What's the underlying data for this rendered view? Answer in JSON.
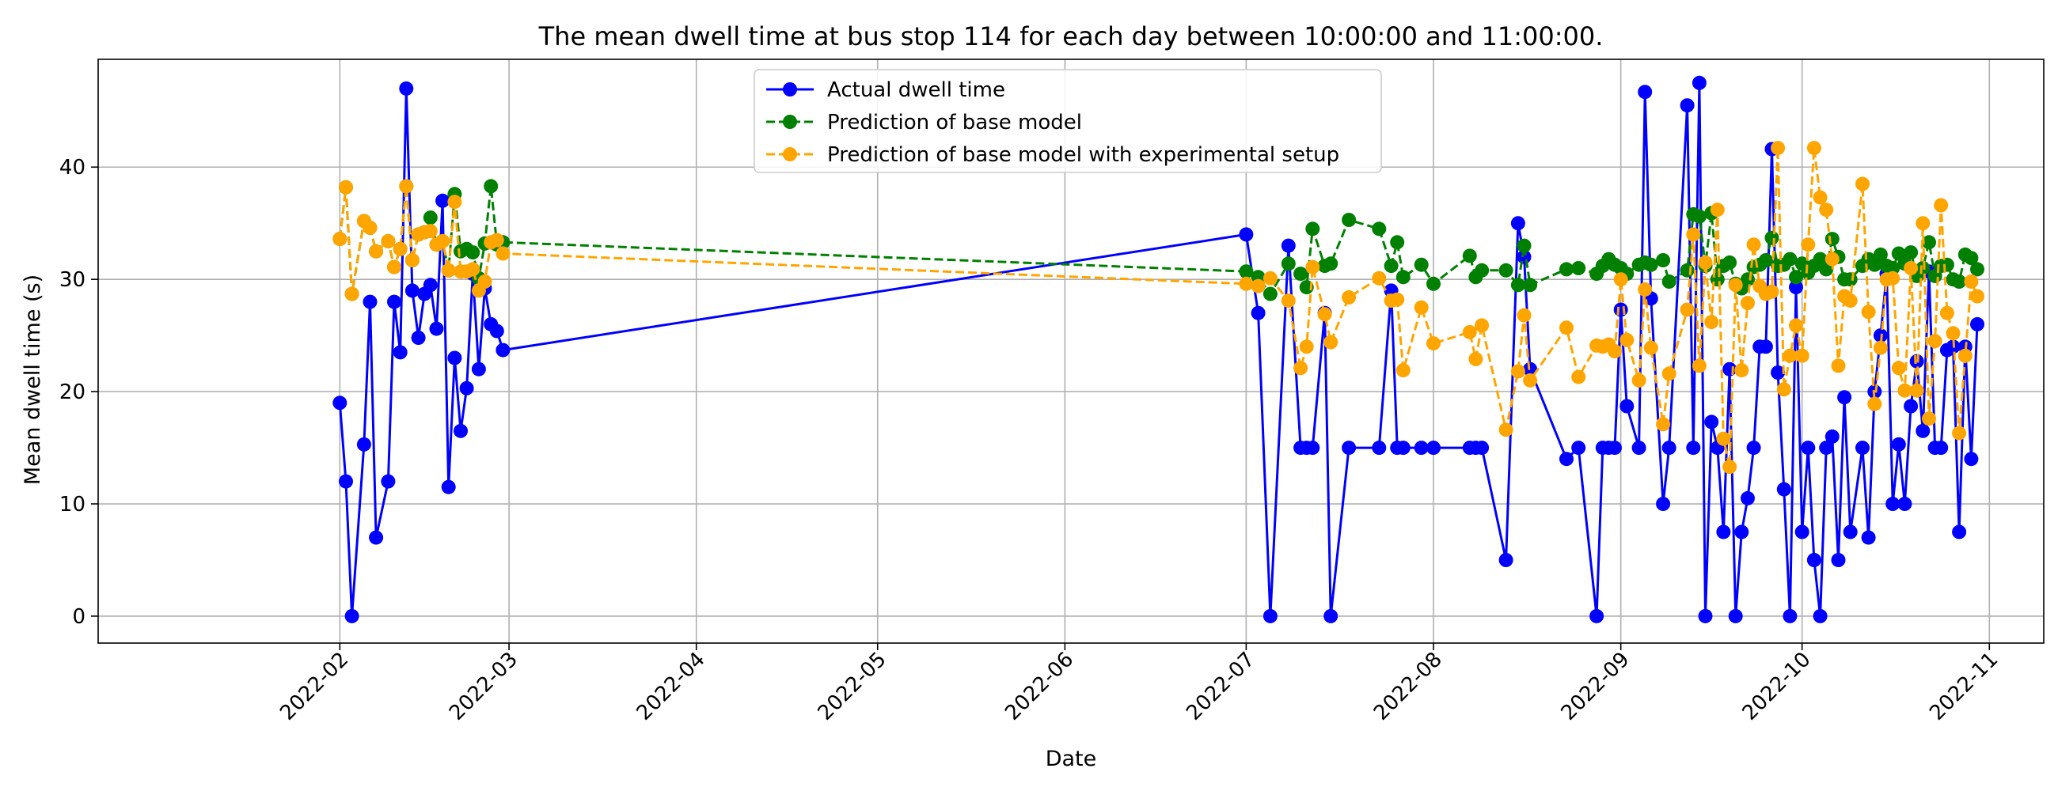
{
  "chart_data": {
    "type": "line",
    "title": "The mean dwell time at bus stop 114 for each day between 10:00:00 and 11:00:00.",
    "xlabel": "Date",
    "ylabel": "Mean dwell time (s)",
    "x_range": [
      "2021-12-23",
      "2022-11-10"
    ],
    "ylim": [
      -2.4,
      49.6
    ],
    "x_ticks": [
      "2022-02-01",
      "2022-03-01",
      "2022-04-01",
      "2022-05-01",
      "2022-06-01",
      "2022-07-01",
      "2022-08-01",
      "2022-09-01",
      "2022-10-01",
      "2022-11-01"
    ],
    "x_tick_labels": [
      "2022-02",
      "2022-03",
      "2022-04",
      "2022-05",
      "2022-06",
      "2022-07",
      "2022-08",
      "2022-09",
      "2022-10",
      "2022-11"
    ],
    "y_ticks": [
      0,
      10,
      20,
      30,
      40
    ],
    "y_tick_labels": [
      "0",
      "10",
      "20",
      "30",
      "40"
    ],
    "grid": true,
    "legend_position": "top-center",
    "series": [
      {
        "name": "Actual dwell time",
        "color": "#0000ff",
        "linestyle": "solid",
        "x": [
          "2022-02-01",
          "2022-02-02",
          "2022-02-03",
          "2022-02-05",
          "2022-02-06",
          "2022-02-07",
          "2022-02-09",
          "2022-02-10",
          "2022-02-11",
          "2022-02-12",
          "2022-02-13",
          "2022-02-14",
          "2022-02-15",
          "2022-02-16",
          "2022-02-17",
          "2022-02-18",
          "2022-02-19",
          "2022-02-20",
          "2022-02-21",
          "2022-02-22",
          "2022-02-23",
          "2022-02-24",
          "2022-02-25",
          "2022-02-26",
          "2022-02-27",
          "2022-02-28",
          "2022-07-01",
          "2022-07-03",
          "2022-07-05",
          "2022-07-08",
          "2022-07-10",
          "2022-07-11",
          "2022-07-12",
          "2022-07-14",
          "2022-07-15",
          "2022-07-18",
          "2022-07-23",
          "2022-07-25",
          "2022-07-26",
          "2022-07-27",
          "2022-07-30",
          "2022-08-01",
          "2022-08-07",
          "2022-08-08",
          "2022-08-09",
          "2022-08-13",
          "2022-08-15",
          "2022-08-16",
          "2022-08-17",
          "2022-08-23",
          "2022-08-25",
          "2022-08-28",
          "2022-08-29",
          "2022-08-30",
          "2022-08-31",
          "2022-09-01",
          "2022-09-02",
          "2022-09-04",
          "2022-09-05",
          "2022-09-06",
          "2022-09-08",
          "2022-09-09",
          "2022-09-12",
          "2022-09-13",
          "2022-09-14",
          "2022-09-15",
          "2022-09-16",
          "2022-09-17",
          "2022-09-18",
          "2022-09-19",
          "2022-09-20",
          "2022-09-21",
          "2022-09-22",
          "2022-09-23",
          "2022-09-24",
          "2022-09-25",
          "2022-09-26",
          "2022-09-27",
          "2022-09-28",
          "2022-09-29",
          "2022-09-30",
          "2022-10-01",
          "2022-10-02",
          "2022-10-03",
          "2022-10-04",
          "2022-10-05",
          "2022-10-06",
          "2022-10-07",
          "2022-10-08",
          "2022-10-09",
          "2022-10-11",
          "2022-10-12",
          "2022-10-13",
          "2022-10-14",
          "2022-10-15",
          "2022-10-16",
          "2022-10-17",
          "2022-10-18",
          "2022-10-19",
          "2022-10-20",
          "2022-10-21",
          "2022-10-22",
          "2022-10-23",
          "2022-10-24",
          "2022-10-25",
          "2022-10-26",
          "2022-10-27",
          "2022-10-28",
          "2022-10-29",
          "2022-10-30"
        ],
        "y": [
          19,
          12,
          0,
          15.3,
          28,
          7,
          12,
          28,
          23.5,
          47,
          29,
          24.8,
          28.7,
          29.5,
          25.6,
          37,
          11.5,
          23,
          16.5,
          20.3,
          30.5,
          22,
          29.2,
          26,
          25.4,
          23.7,
          34,
          27,
          0,
          33,
          15,
          15,
          15,
          27,
          0,
          15,
          15,
          29,
          15,
          15,
          15,
          15,
          15,
          15,
          15,
          5,
          35,
          32,
          22,
          14,
          15,
          0,
          15,
          15,
          15,
          27.3,
          18.7,
          15,
          46.7,
          28.3,
          10,
          15,
          45.5,
          15,
          47.5,
          0,
          17.3,
          15,
          7.5,
          22,
          0,
          7.5,
          10.5,
          15,
          24,
          24,
          41.6,
          21.7,
          11.3,
          0,
          29.3,
          7.5,
          15,
          5,
          0,
          15,
          16,
          5,
          19.5,
          7.5,
          15,
          7,
          20,
          25,
          30.5,
          10,
          15.3,
          10,
          18.7,
          22.7,
          16.5,
          30.7,
          15,
          15,
          23.7,
          24,
          7.5,
          24,
          14,
          26
        ]
      },
      {
        "name": "Prediction of base model",
        "color": "#008000",
        "linestyle": "dashed",
        "x": [
          "2022-02-01",
          "2022-02-02",
          "2022-02-03",
          "2022-02-05",
          "2022-02-06",
          "2022-02-07",
          "2022-02-09",
          "2022-02-10",
          "2022-02-11",
          "2022-02-12",
          "2022-02-13",
          "2022-02-14",
          "2022-02-15",
          "2022-02-16",
          "2022-02-17",
          "2022-02-18",
          "2022-02-19",
          "2022-02-20",
          "2022-02-21",
          "2022-02-22",
          "2022-02-23",
          "2022-02-24",
          "2022-02-25",
          "2022-02-26",
          "2022-02-27",
          "2022-02-28",
          "2022-07-01",
          "2022-07-03",
          "2022-07-05",
          "2022-07-08",
          "2022-07-10",
          "2022-07-11",
          "2022-07-12",
          "2022-07-14",
          "2022-07-15",
          "2022-07-18",
          "2022-07-23",
          "2022-07-25",
          "2022-07-26",
          "2022-07-27",
          "2022-07-30",
          "2022-08-01",
          "2022-08-07",
          "2022-08-08",
          "2022-08-09",
          "2022-08-13",
          "2022-08-15",
          "2022-08-16",
          "2022-08-17",
          "2022-08-23",
          "2022-08-25",
          "2022-08-28",
          "2022-08-29",
          "2022-08-30",
          "2022-08-31",
          "2022-09-01",
          "2022-09-02",
          "2022-09-04",
          "2022-09-05",
          "2022-09-06",
          "2022-09-08",
          "2022-09-09",
          "2022-09-12",
          "2022-09-13",
          "2022-09-14",
          "2022-09-15",
          "2022-09-16",
          "2022-09-17",
          "2022-09-18",
          "2022-09-19",
          "2022-09-20",
          "2022-09-21",
          "2022-09-22",
          "2022-09-23",
          "2022-09-24",
          "2022-09-25",
          "2022-09-26",
          "2022-09-27",
          "2022-09-28",
          "2022-09-29",
          "2022-09-30",
          "2022-10-01",
          "2022-10-02",
          "2022-10-03",
          "2022-10-04",
          "2022-10-05",
          "2022-10-06",
          "2022-10-07",
          "2022-10-08",
          "2022-10-09",
          "2022-10-11",
          "2022-10-12",
          "2022-10-13",
          "2022-10-14",
          "2022-10-15",
          "2022-10-16",
          "2022-10-17",
          "2022-10-18",
          "2022-10-19",
          "2022-10-20",
          "2022-10-21",
          "2022-10-22",
          "2022-10-23",
          "2022-10-24",
          "2022-10-25",
          "2022-10-26",
          "2022-10-27",
          "2022-10-28",
          "2022-10-29",
          "2022-10-30"
        ],
        "y": [
          33.6,
          38.2,
          28.7,
          35.2,
          34.6,
          32.5,
          33.4,
          31.1,
          32.7,
          38.3,
          31.7,
          34,
          34.2,
          35.5,
          33.1,
          33.4,
          30.8,
          37.6,
          32.5,
          32.7,
          32.4,
          30.1,
          33.2,
          38.3,
          33.1,
          33.3,
          30.7,
          30.2,
          28.7,
          31.4,
          30.5,
          29.3,
          34.5,
          31.2,
          31.4,
          35.3,
          34.5,
          31.2,
          33.3,
          30.2,
          31.3,
          29.6,
          32.1,
          30.2,
          30.8,
          30.8,
          29.5,
          33,
          29.5,
          30.9,
          31,
          30.5,
          31.2,
          31.8,
          31.3,
          31,
          30.5,
          31.3,
          31.5,
          31.3,
          31.7,
          29.8,
          30.8,
          35.8,
          35.6,
          31.2,
          35.9,
          30,
          31.2,
          31.5,
          29.6,
          29.2,
          30,
          31.1,
          31.3,
          31.7,
          33.7,
          31.2,
          31.3,
          31.8,
          30.2,
          31.4,
          30.6,
          31.2,
          31.8,
          30.9,
          33.6,
          32,
          30,
          30,
          31.2,
          31.8,
          31.3,
          32.2,
          31.2,
          31,
          32.3,
          31.4,
          32.4,
          30.3,
          31,
          33.3,
          30.3,
          31.2,
          31.3,
          30,
          29.8,
          32.2,
          31.9,
          30.9
        ]
      },
      {
        "name": "Prediction of base model with experimental setup",
        "color": "#ffa500",
        "linestyle": "dashed",
        "x": [
          "2022-02-01",
          "2022-02-02",
          "2022-02-03",
          "2022-02-05",
          "2022-02-06",
          "2022-02-07",
          "2022-02-09",
          "2022-02-10",
          "2022-02-11",
          "2022-02-12",
          "2022-02-13",
          "2022-02-14",
          "2022-02-15",
          "2022-02-16",
          "2022-02-17",
          "2022-02-18",
          "2022-02-19",
          "2022-02-20",
          "2022-02-21",
          "2022-02-22",
          "2022-02-23",
          "2022-02-24",
          "2022-02-25",
          "2022-02-26",
          "2022-02-27",
          "2022-02-28",
          "2022-07-01",
          "2022-07-03",
          "2022-07-05",
          "2022-07-08",
          "2022-07-10",
          "2022-07-11",
          "2022-07-12",
          "2022-07-14",
          "2022-07-15",
          "2022-07-18",
          "2022-07-23",
          "2022-07-25",
          "2022-07-26",
          "2022-07-27",
          "2022-07-30",
          "2022-08-01",
          "2022-08-07",
          "2022-08-08",
          "2022-08-09",
          "2022-08-13",
          "2022-08-15",
          "2022-08-16",
          "2022-08-17",
          "2022-08-23",
          "2022-08-25",
          "2022-08-28",
          "2022-08-29",
          "2022-08-30",
          "2022-08-31",
          "2022-09-01",
          "2022-09-02",
          "2022-09-04",
          "2022-09-05",
          "2022-09-06",
          "2022-09-08",
          "2022-09-09",
          "2022-09-12",
          "2022-09-13",
          "2022-09-14",
          "2022-09-15",
          "2022-09-16",
          "2022-09-17",
          "2022-09-18",
          "2022-09-19",
          "2022-09-20",
          "2022-09-21",
          "2022-09-22",
          "2022-09-23",
          "2022-09-24",
          "2022-09-25",
          "2022-09-26",
          "2022-09-27",
          "2022-09-28",
          "2022-09-29",
          "2022-09-30",
          "2022-10-01",
          "2022-10-02",
          "2022-10-03",
          "2022-10-04",
          "2022-10-05",
          "2022-10-06",
          "2022-10-07",
          "2022-10-08",
          "2022-10-09",
          "2022-10-11",
          "2022-10-12",
          "2022-10-13",
          "2022-10-14",
          "2022-10-15",
          "2022-10-16",
          "2022-10-17",
          "2022-10-18",
          "2022-10-19",
          "2022-10-20",
          "2022-10-21",
          "2022-10-22",
          "2022-10-23",
          "2022-10-24",
          "2022-10-25",
          "2022-10-26",
          "2022-10-27",
          "2022-10-28",
          "2022-10-29",
          "2022-10-30"
        ],
        "y": [
          33.6,
          38.2,
          28.7,
          35.2,
          34.6,
          32.5,
          33.4,
          31.1,
          32.7,
          38.3,
          31.7,
          34,
          34.2,
          34.3,
          33.1,
          33.4,
          30.8,
          36.9,
          30.7,
          30.7,
          30.9,
          29,
          29.8,
          33.3,
          33.5,
          32.3,
          29.6,
          29.4,
          30.1,
          28.1,
          22.1,
          24,
          31.1,
          26.9,
          24.4,
          28.4,
          30.1,
          28.1,
          28.2,
          21.9,
          27.5,
          24.3,
          25.3,
          22.9,
          25.9,
          16.6,
          21.8,
          26.8,
          21,
          25.7,
          21.3,
          24.1,
          24,
          24.2,
          23.6,
          30,
          24.6,
          21,
          29.1,
          23.9,
          17.1,
          21.6,
          27.3,
          34,
          22.3,
          31.5,
          26.2,
          36.2,
          15.8,
          13.3,
          29.5,
          21.9,
          27.9,
          33.1,
          29.4,
          28.7,
          28.9,
          41.7,
          20.2,
          23.2,
          25.9,
          23.2,
          33.1,
          41.7,
          37.3,
          36.2,
          31.8,
          22.3,
          28.5,
          28.1,
          38.5,
          27.1,
          18.9,
          23.9,
          30,
          30.1,
          22.1,
          20.1,
          31,
          20.1,
          35,
          17.6,
          24.5,
          36.6,
          27,
          25.2,
          16.3,
          23.2,
          29.8,
          28.5
        ]
      }
    ]
  }
}
